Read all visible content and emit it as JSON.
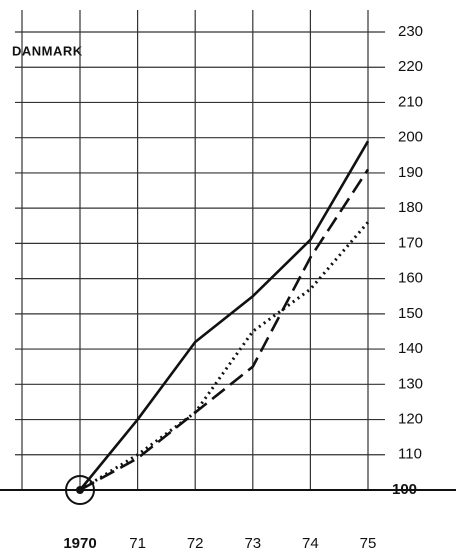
{
  "chart_data": {
    "type": "line",
    "title": "DANMARK",
    "categories": [
      "1970",
      "71",
      "72",
      "73",
      "74",
      "75"
    ],
    "series": [
      {
        "color": "#111111",
        "dash": "solid",
        "values": [
          100,
          120,
          142,
          155,
          171,
          199
        ]
      },
      {
        "color": "#111111",
        "dash": "dashed",
        "values": [
          100,
          109,
          122,
          135,
          166,
          191
        ]
      },
      {
        "color": "#111111",
        "dash": "dotted",
        "values": [
          100,
          110,
          122,
          145,
          157,
          176
        ]
      }
    ],
    "ylim": [
      100,
      230
    ],
    "yticks": [
      100,
      110,
      120,
      130,
      140,
      150,
      160,
      170,
      180,
      190,
      200,
      210,
      220,
      230
    ],
    "grid": true
  }
}
